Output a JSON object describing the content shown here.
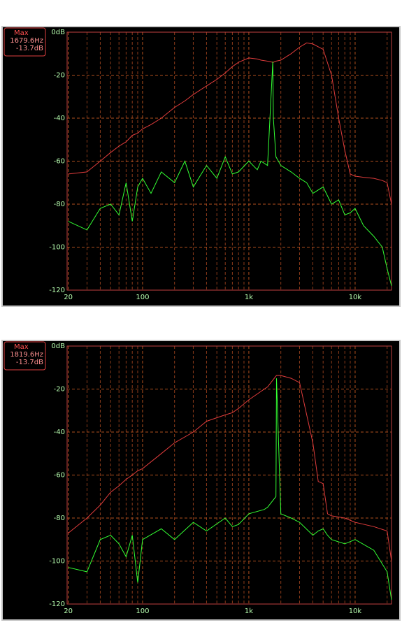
{
  "chart_data": [
    {
      "type": "line",
      "xscale": "log",
      "grid": true,
      "annotations": [
        "Max",
        "1679.6Hz",
        "-13.7dB"
      ],
      "xlim": [
        19.5,
        22000
      ],
      "ylim": [
        -120,
        0
      ],
      "xticks": [
        20,
        100,
        {
          "value": 1000,
          "label": "1k"
        },
        {
          "value": 10000,
          "label": "10k"
        }
      ],
      "xminorticks": [
        30,
        40,
        50,
        60,
        70,
        80,
        90,
        200,
        300,
        400,
        500,
        600,
        700,
        800,
        900,
        2000,
        3000,
        4000,
        5000,
        6000,
        7000,
        8000,
        9000,
        20000
      ],
      "yticks": [
        {
          "value": 0,
          "label": "0dB"
        },
        -20,
        -40,
        -60,
        -80,
        -100,
        -120
      ],
      "x": [
        20,
        30,
        40,
        50,
        60,
        70,
        80,
        90,
        100,
        120,
        150,
        200,
        250,
        300,
        400,
        500,
        600,
        700,
        800,
        1000,
        1200,
        1300,
        1500,
        1679.6,
        1700,
        1800,
        2000,
        2500,
        3000,
        3500,
        4000,
        5000,
        6000,
        7000,
        8000,
        9000,
        10000,
        12000,
        15000,
        18000,
        20000,
        22000
      ],
      "series": [
        {
          "color": "#e03c3c",
          "values": [
            -66,
            -65,
            -60,
            -56,
            -53,
            -51,
            -48,
            -47,
            -45,
            -43,
            -40,
            -35,
            -32,
            -29,
            -25,
            -22,
            -19,
            -16,
            -14,
            -12,
            -12.5,
            -13,
            -13.5,
            -14,
            -14,
            -13.5,
            -13,
            -10,
            -7,
            -5,
            -5.5,
            -8,
            -20,
            -40,
            -55,
            -66,
            -67,
            -67.5,
            -68,
            -69,
            -70,
            -80
          ]
        },
        {
          "color": "#33ff33",
          "values": [
            -88,
            -92,
            -82,
            -80,
            -85,
            -70,
            -88,
            -72,
            -68,
            -75,
            -65,
            -70,
            -60,
            -72,
            -62,
            -68,
            -58,
            -66,
            -65,
            -60,
            -64,
            -60,
            -62,
            -13.7,
            -40,
            -58,
            -62,
            -65,
            -68,
            -70,
            -75,
            -72,
            -80,
            -78,
            -85,
            -84,
            -82,
            -90,
            -95,
            -100,
            -110,
            -118
          ]
        }
      ]
    },
    {
      "type": "line",
      "xscale": "log",
      "grid": true,
      "annotations": [
        "Max",
        "1819.6Hz",
        "-13.7dB"
      ],
      "xlim": [
        19.5,
        22000
      ],
      "ylim": [
        -120,
        0
      ],
      "xticks": [
        20,
        100,
        {
          "value": 1000,
          "label": "1k"
        },
        {
          "value": 10000,
          "label": "10k"
        }
      ],
      "xminorticks": [
        30,
        40,
        50,
        60,
        70,
        80,
        90,
        200,
        300,
        400,
        500,
        600,
        700,
        800,
        900,
        2000,
        3000,
        4000,
        5000,
        6000,
        7000,
        8000,
        9000,
        20000
      ],
      "yticks": [
        {
          "value": 0,
          "label": "0dB"
        },
        -20,
        -40,
        -60,
        -80,
        -100,
        -120
      ],
      "x": [
        20,
        30,
        40,
        50,
        60,
        70,
        80,
        90,
        100,
        150,
        200,
        300,
        400,
        600,
        700,
        800,
        1000,
        1400,
        1500,
        1800,
        1819.6,
        2000,
        2500,
        3000,
        4000,
        4500,
        5000,
        5500,
        6000,
        8000,
        10000,
        15000,
        20000,
        22000
      ],
      "series": [
        {
          "color": "#e03c3c",
          "values": [
            -87,
            -80,
            -74,
            -68,
            -65,
            -62,
            -60,
            -58,
            -57,
            -50,
            -45,
            -40,
            -35,
            -32,
            -31,
            -29,
            -25,
            -20,
            -19,
            -14,
            -13.7,
            -13.7,
            -15,
            -17,
            -45,
            -63,
            -64,
            -78,
            -79,
            -80,
            -82,
            -84,
            -86,
            -100
          ]
        },
        {
          "color": "#33ff33",
          "values": [
            -103,
            -105,
            -90,
            -88,
            -92,
            -98,
            -88,
            -110,
            -90,
            -85,
            -90,
            -82,
            -86,
            -80,
            -84,
            -83,
            -78,
            -76,
            -75,
            -70,
            -15,
            -78,
            -80,
            -82,
            -88,
            -86,
            -85,
            -88,
            -90,
            -92,
            -90,
            -95,
            -105,
            -118
          ]
        }
      ]
    }
  ]
}
